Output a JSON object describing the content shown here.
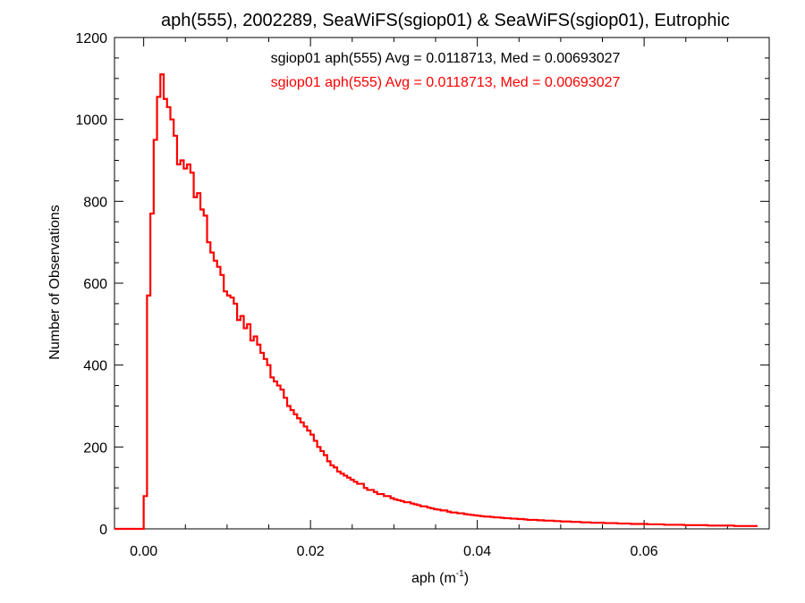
{
  "chart_data": {
    "type": "histogram",
    "title": "aph(555), 2002289, SeaWiFS(sgiop01) & SeaWiFS(sgiop01), Eutrophic",
    "xlabel_base": "aph (m",
    "xlabel_sup": "-1",
    "xlabel_close": ")",
    "ylabel": "Number of Observations",
    "xlim": [
      -0.0035,
      0.075
    ],
    "ylim": [
      0,
      1200
    ],
    "xticks": [
      0.0,
      0.02,
      0.04,
      0.06
    ],
    "xtick_labels": [
      "0.00",
      "0.02",
      "0.04",
      "0.06"
    ],
    "yticks": [
      0,
      200,
      400,
      600,
      800,
      1000,
      1200
    ],
    "ytick_labels": [
      "0",
      "200",
      "400",
      "600",
      "800",
      "1000",
      "1200"
    ],
    "grid": false,
    "annotations": [
      {
        "text": "sgiop01 aph(555) Avg = 0.0118713, Med = 0.00693027",
        "color": "#000000"
      },
      {
        "text": "sgiop01 aph(555) Avg = 0.0118713, Med = 0.00693027",
        "color": "#ff0000"
      }
    ],
    "series": [
      {
        "color": "#ff0000",
        "bin_width": 0.0004,
        "x_start": -0.0004,
        "counts": [
          0,
          80,
          570,
          770,
          950,
          1055,
          1110,
          1050,
          1030,
          1000,
          960,
          890,
          900,
          880,
          890,
          870,
          810,
          820,
          780,
          765,
          700,
          675,
          655,
          640,
          620,
          580,
          570,
          565,
          550,
          510,
          520,
          490,
          500,
          460,
          470,
          450,
          430,
          415,
          400,
          370,
          360,
          350,
          340,
          320,
          300,
          290,
          280,
          270,
          260,
          250,
          240,
          230,
          215,
          200,
          190,
          180,
          165,
          155,
          150,
          140,
          135,
          130,
          125,
          120,
          115,
          110,
          110,
          100,
          95,
          95,
          90,
          85,
          85,
          80,
          80,
          75,
          72,
          70,
          68,
          65,
          65,
          62,
          60,
          58,
          55,
          55,
          52,
          50,
          48,
          47,
          45,
          45,
          42,
          40,
          40,
          38,
          38,
          36,
          35,
          34,
          33,
          32,
          31,
          30,
          30,
          29,
          28,
          28,
          27,
          26,
          26,
          25,
          25,
          24,
          24,
          23,
          22,
          22,
          22,
          21,
          21,
          20,
          20,
          20,
          19,
          19,
          18,
          18,
          18,
          17,
          17,
          17,
          16,
          16,
          16,
          15,
          15,
          15,
          15,
          14,
          14,
          14,
          14,
          13,
          13,
          13,
          13,
          12,
          12,
          12,
          12,
          12,
          11,
          11,
          11,
          11,
          11,
          10,
          10,
          10,
          10,
          10,
          10,
          9,
          9,
          9,
          9,
          9,
          9,
          9,
          8,
          8,
          8,
          8,
          8,
          8,
          8,
          8,
          7,
          7,
          7,
          7,
          7,
          7,
          7
        ]
      }
    ]
  }
}
